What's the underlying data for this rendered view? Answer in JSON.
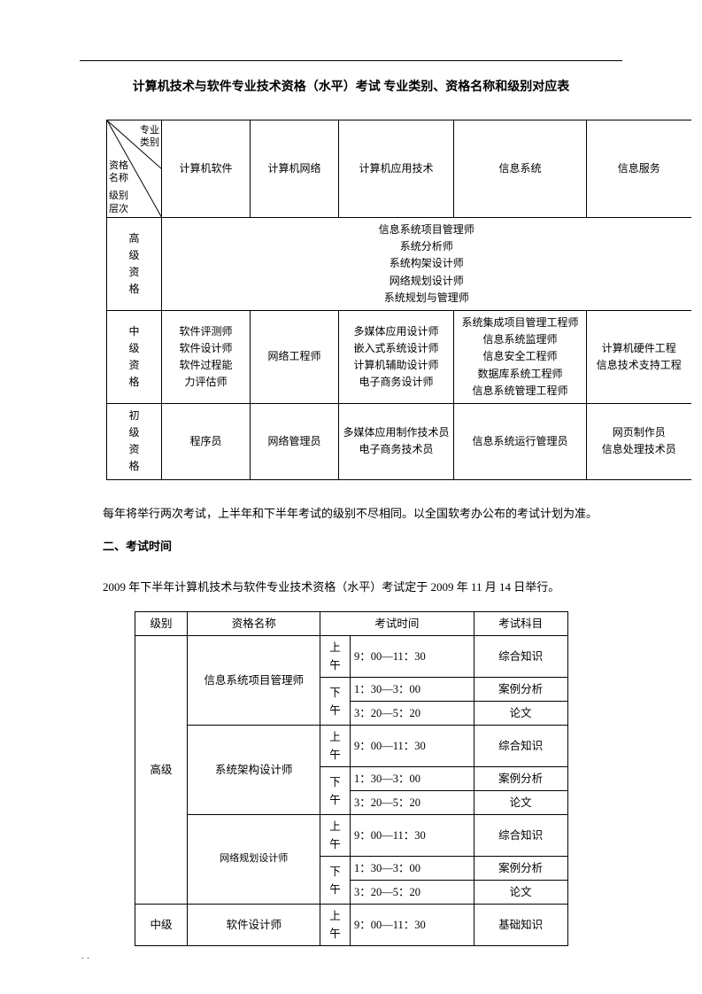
{
  "title": "计算机技术与软件专业技术资格（水平）考试 专业类别、资格名称和级别对应表",
  "table1": {
    "diag": {
      "top": "专业<br>类别",
      "mid": "资格<br>名称",
      "bot": "级别<br>层次"
    },
    "columns": [
      "计算机软件",
      "计算机网络",
      "计算机应用技术",
      "信息系统",
      "信息服务"
    ],
    "rows": [
      {
        "level": "高级资格",
        "merged": true,
        "lines": [
          "信息系统项目管理师",
          "系统分析师",
          "系统构架设计师",
          "网络规划设计师",
          "系统规划与管理师"
        ]
      },
      {
        "level": "中级资格",
        "cells": [
          "软件评测师<br>软件设计师<br>软件过程能<br>力评估师",
          "网络工程师",
          "多媒体应用设计师<br>嵌入式系统设计师<br>计算机辅助设计师<br>电子商务设计师",
          "系统集成项目管理工程师<br>信息系统监理师<br>信息安全工程师<br>数据库系统工程师<br>信息系统管理工程师",
          "计算机硬件工程<br>信息技术支持工程"
        ]
      },
      {
        "level": "初级资格",
        "cells": [
          "程序员",
          "网络管理员",
          "多媒体应用制作技术员<br>电子商务技术员",
          "信息系统运行管理员",
          "网页制作员<br>信息处理技术员"
        ]
      }
    ]
  },
  "para1": "每年将举行两次考试，上半年和下半年考试的级别不尽相同。以全国软考办公布的考试计划为准。",
  "section2_title": "二、考试时间",
  "para2": "2009 年下半年计算机技术与软件专业技术资格（水平）考试定于 2009 年 11 月 14 日举行。",
  "table2": {
    "headers": [
      "级别",
      "资格名称",
      "考试时间",
      "考试科目"
    ],
    "groups": [
      {
        "level": "高级",
        "quals": [
          {
            "name": "信息系统项目管理师",
            "slots": [
              {
                "ampm": "上午",
                "time": "9：00—11：30",
                "subj": "综合知识"
              },
              {
                "ampm": "下午",
                "time": "1：30—3：00",
                "subj": "案例分析",
                "pm_rowspan": 2
              },
              {
                "ampm": "",
                "time": "3：20—5：20",
                "subj": "论文"
              }
            ]
          },
          {
            "name": "系统架构设计师",
            "slots": [
              {
                "ampm": "上午",
                "time": "9：00—11：30",
                "subj": "综合知识"
              },
              {
                "ampm": "下午",
                "time": "1：30—3：00",
                "subj": "案例分析",
                "pm_rowspan": 2
              },
              {
                "ampm": "",
                "time": "3：20—5：20",
                "subj": "论文"
              }
            ]
          },
          {
            "name": "网络规划设计师",
            "name_small": true,
            "slots": [
              {
                "ampm": "上午",
                "time": "9：00—11：30",
                "subj": "综合知识"
              },
              {
                "ampm": "下午",
                "time": "1：30—3：00",
                "subj": "案例分析",
                "pm_rowspan": 2
              },
              {
                "ampm": "",
                "time": "3：20—5：20",
                "subj": "论文"
              }
            ]
          }
        ]
      },
      {
        "level": "中级",
        "quals": [
          {
            "name": "软件设计师",
            "slots": [
              {
                "ampm": "上午",
                "time": "9：00—11：30",
                "subj": "基础知识"
              }
            ]
          }
        ]
      }
    ]
  },
  "footer_dots": ". ."
}
